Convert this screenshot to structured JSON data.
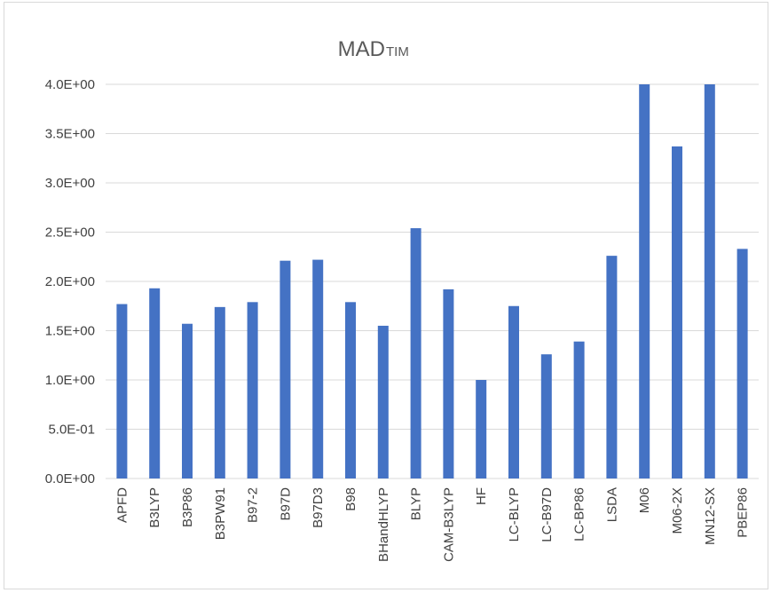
{
  "chart_data": {
    "type": "bar",
    "title": "MAD",
    "title_subscript": "TIM",
    "categories": [
      "APFD",
      "B3LYP",
      "B3P86",
      "B3PW91",
      "B97-2",
      "B97D",
      "B97D3",
      "B98",
      "BHandHLYP",
      "BLYP",
      "CAM-B3LYP",
      "HF",
      "LC-BLYP",
      "LC-B97D",
      "LC-BP86",
      "LSDA",
      "M06",
      "M06-2X",
      "MN12-SX",
      "PBEP86"
    ],
    "values": [
      1.77,
      1.93,
      1.57,
      1.74,
      1.79,
      2.21,
      2.22,
      1.79,
      1.55,
      2.54,
      1.92,
      1.0,
      1.75,
      1.26,
      1.39,
      2.26,
      4.0,
      3.37,
      4.0,
      2.33
    ],
    "ylim": [
      0,
      4.0
    ],
    "y_ticks": [
      "0.0E+00",
      "5.0E-01",
      "1.0E+00",
      "1.5E+00",
      "2.0E+00",
      "2.5E+00",
      "3.0E+00",
      "3.5E+00",
      "4.0E+00"
    ],
    "grid": true,
    "bar_color": "#4472c4"
  }
}
